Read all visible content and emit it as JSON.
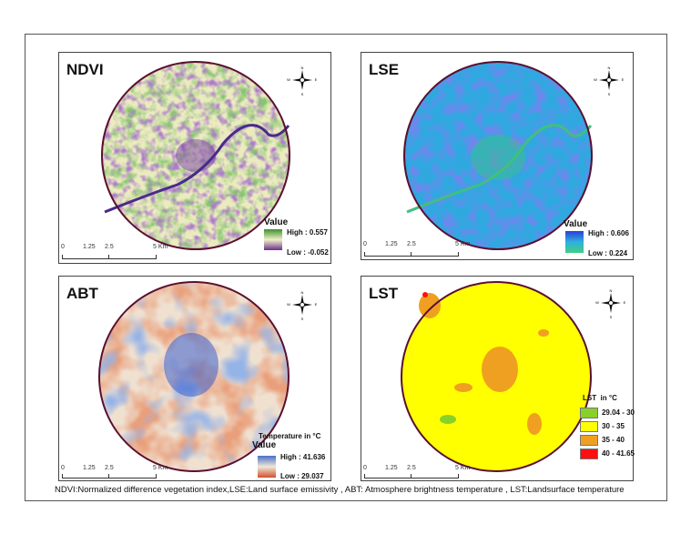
{
  "panels": [
    {
      "id": "ndvi",
      "title": "NDVI",
      "legend": {
        "heading": "Value",
        "high": "High : 0.557",
        "low": "Low : -0.052",
        "colors": [
          "#3d8f2a",
          "#f0f0c8",
          "#6a2f8f"
        ]
      }
    },
    {
      "id": "lse",
      "title": "LSE",
      "legend": {
        "heading": "Value",
        "high": "High : 0.606",
        "low": "Low : 0.224",
        "colors": [
          "#2a3fd8",
          "#2fb0e0",
          "#3fd080"
        ]
      }
    },
    {
      "id": "abt",
      "title": "ABT",
      "legend": {
        "subheading": "Temperature in °C",
        "heading": "Value",
        "high": "High : 41.636",
        "low": "Low : 29.037",
        "colors": [
          "#4a6fc8",
          "#f0e8d8",
          "#d0502a"
        ]
      }
    },
    {
      "id": "lst",
      "title": "LST",
      "legend": {
        "heading": "LST  in °C",
        "classes": [
          {
            "label": "29.04 - 30",
            "color": "#88d02a"
          },
          {
            "label": "30 - 35",
            "color": "#ffff00"
          },
          {
            "label": "35 - 40",
            "color": "#f0a020"
          },
          {
            "label": "40 - 41.65",
            "color": "#ff1010"
          }
        ]
      }
    }
  ],
  "scale_bar": {
    "labels": [
      "0",
      "1.25",
      "2.5",
      "5 Km"
    ]
  },
  "compass": {
    "n": "N",
    "s": "S",
    "e": "E",
    "w": "W"
  },
  "caption": "NDVI:Normalized difference vegetation index,LSE:Land surface emissivity , ABT: Atmosphere brightness temperature , LST:Landsurface temperature"
}
